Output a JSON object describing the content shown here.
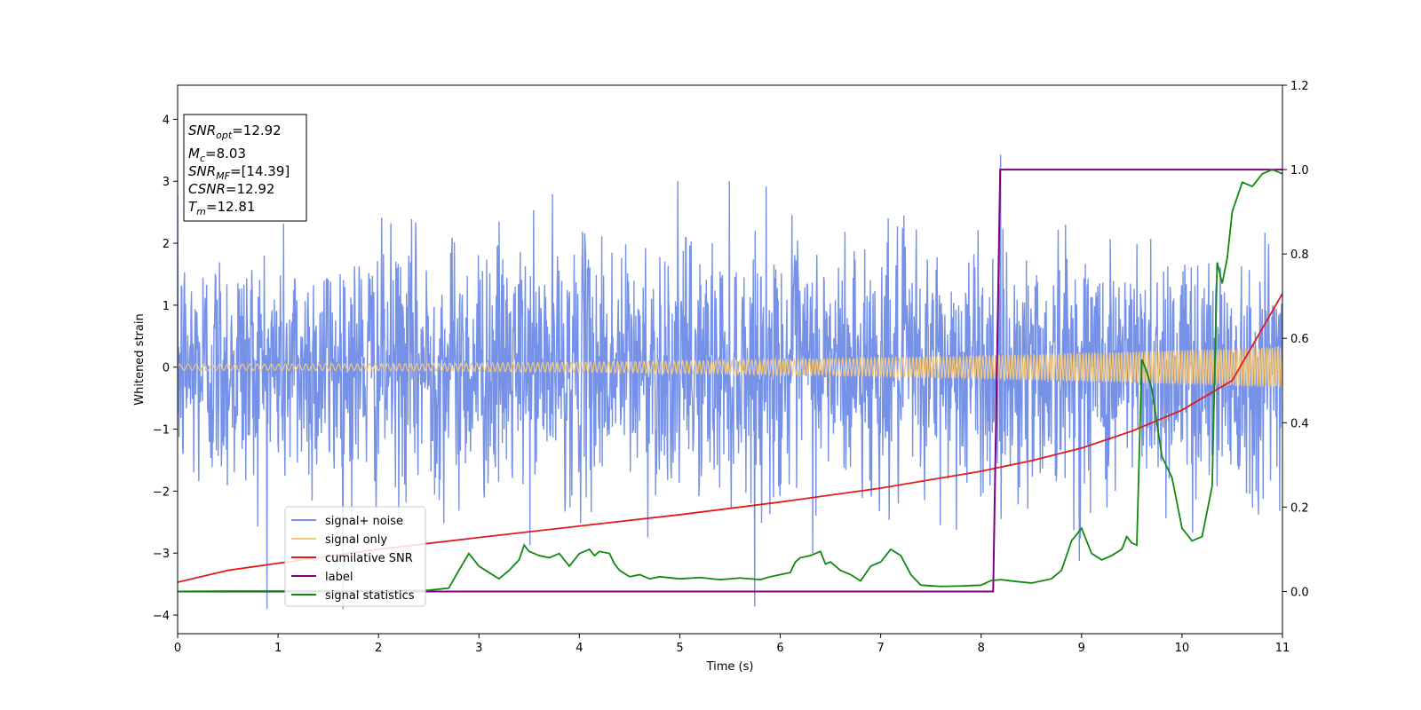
{
  "chart_data": {
    "type": "line",
    "title": "",
    "xlabel": "Time (s)",
    "ylabel": "Whitened strain",
    "xlim": [
      0,
      11
    ],
    "ylim": [
      -4.3,
      4.55
    ],
    "y2lim": [
      -0.1,
      1.2
    ],
    "x_ticks": [
      "0",
      "1",
      "2",
      "3",
      "4",
      "5",
      "6",
      "7",
      "8",
      "9",
      "10",
      "11"
    ],
    "y_ticks": [
      "−4",
      "−3",
      "−2",
      "−1",
      "0",
      "1",
      "2",
      "3",
      "4"
    ],
    "y2_ticks": [
      "0.0",
      "0.2",
      "0.4",
      "0.6",
      "0.8",
      "1.0",
      "1.2"
    ],
    "info_box": [
      {
        "name": "SNR",
        "sub": "opt",
        "value": "=12.92"
      },
      {
        "name": "M",
        "sub": "c",
        "value": "=8.03"
      },
      {
        "name": "SNR",
        "sub": "MF",
        "value": "=[14.39]"
      },
      {
        "name": "CSNR",
        "sub": "",
        "value": "=12.92"
      },
      {
        "name": "T",
        "sub": "m",
        "value": "=12.81"
      }
    ],
    "legend": {
      "position": "lower-left",
      "entries": [
        {
          "label": "signal+ noise",
          "color": "#7592e8"
        },
        {
          "label": "signal only",
          "color": "#f5c87a"
        },
        {
          "label": "cumilative SNR",
          "color": "#e31a1c"
        },
        {
          "label": "label",
          "color": "#800080"
        },
        {
          "label": "signal statistics",
          "color": "#118811"
        }
      ]
    },
    "series": [
      {
        "name": "signal+ noise",
        "axis": "left",
        "color": "#7592e8",
        "note": "white noise sampled 0-11 s, std ~1.0",
        "x_range": [
          0,
          11
        ],
        "samples": 2400,
        "std": 1.0
      },
      {
        "name": "signal only",
        "axis": "left",
        "color": "#f5c87a",
        "x_range": [
          0,
          11
        ],
        "amplitude_start": 0.05,
        "amplitude_end": 0.33,
        "freq_start_hz": 12,
        "freq_end_hz": 38
      },
      {
        "name": "cumilative SNR",
        "axis": "right",
        "x": [
          0,
          0.5,
          1,
          2,
          3,
          4,
          5,
          6,
          7,
          8,
          8.5,
          9,
          9.5,
          10,
          10.5,
          11
        ],
        "values": [
          0.022,
          0.05,
          0.067,
          0.1,
          0.128,
          0.155,
          0.182,
          0.212,
          0.245,
          0.285,
          0.31,
          0.34,
          0.38,
          0.43,
          0.5,
          0.706
        ]
      },
      {
        "name": "label",
        "axis": "right",
        "x": [
          0,
          8.12,
          8.19,
          11
        ],
        "values": [
          0.0,
          0.0,
          1.0,
          1.0
        ]
      },
      {
        "name": "signal statistics",
        "axis": "right",
        "x": [
          0,
          0.5,
          1,
          1.5,
          2,
          2.5,
          2.7,
          2.8,
          2.9,
          3.0,
          3.1,
          3.2,
          3.3,
          3.4,
          3.45,
          3.5,
          3.6,
          3.7,
          3.8,
          3.9,
          4.0,
          4.1,
          4.15,
          4.2,
          4.3,
          4.35,
          4.4,
          4.5,
          4.6,
          4.7,
          4.8,
          5.0,
          5.2,
          5.4,
          5.6,
          5.8,
          5.9,
          6.0,
          6.1,
          6.15,
          6.2,
          6.3,
          6.4,
          6.45,
          6.5,
          6.6,
          6.7,
          6.8,
          6.9,
          7.0,
          7.1,
          7.2,
          7.3,
          7.4,
          7.6,
          7.8,
          8.0,
          8.1,
          8.2,
          8.3,
          8.5,
          8.7,
          8.8,
          8.9,
          9.0,
          9.1,
          9.2,
          9.3,
          9.4,
          9.45,
          9.5,
          9.55,
          9.6,
          9.65,
          9.7,
          9.8,
          9.9,
          10.0,
          10.1,
          10.2,
          10.3,
          10.35,
          10.4,
          10.45,
          10.5,
          10.6,
          10.7,
          10.8,
          10.9,
          11.0
        ],
        "values": [
          0.0,
          0.001,
          0.001,
          0.002,
          0.002,
          0.003,
          0.008,
          0.05,
          0.09,
          0.06,
          0.045,
          0.03,
          0.05,
          0.075,
          0.11,
          0.095,
          0.085,
          0.08,
          0.09,
          0.06,
          0.09,
          0.1,
          0.085,
          0.095,
          0.09,
          0.065,
          0.05,
          0.035,
          0.04,
          0.03,
          0.035,
          0.03,
          0.033,
          0.028,
          0.032,
          0.028,
          0.035,
          0.04,
          0.045,
          0.07,
          0.08,
          0.085,
          0.095,
          0.065,
          0.07,
          0.05,
          0.04,
          0.025,
          0.06,
          0.07,
          0.1,
          0.085,
          0.04,
          0.015,
          0.012,
          0.013,
          0.015,
          0.026,
          0.028,
          0.025,
          0.02,
          0.03,
          0.05,
          0.12,
          0.15,
          0.09,
          0.075,
          0.085,
          0.1,
          0.13,
          0.115,
          0.11,
          0.55,
          0.52,
          0.48,
          0.32,
          0.27,
          0.15,
          0.12,
          0.13,
          0.25,
          0.78,
          0.73,
          0.79,
          0.9,
          0.97,
          0.96,
          0.99,
          1.0,
          0.99
        ]
      }
    ]
  }
}
